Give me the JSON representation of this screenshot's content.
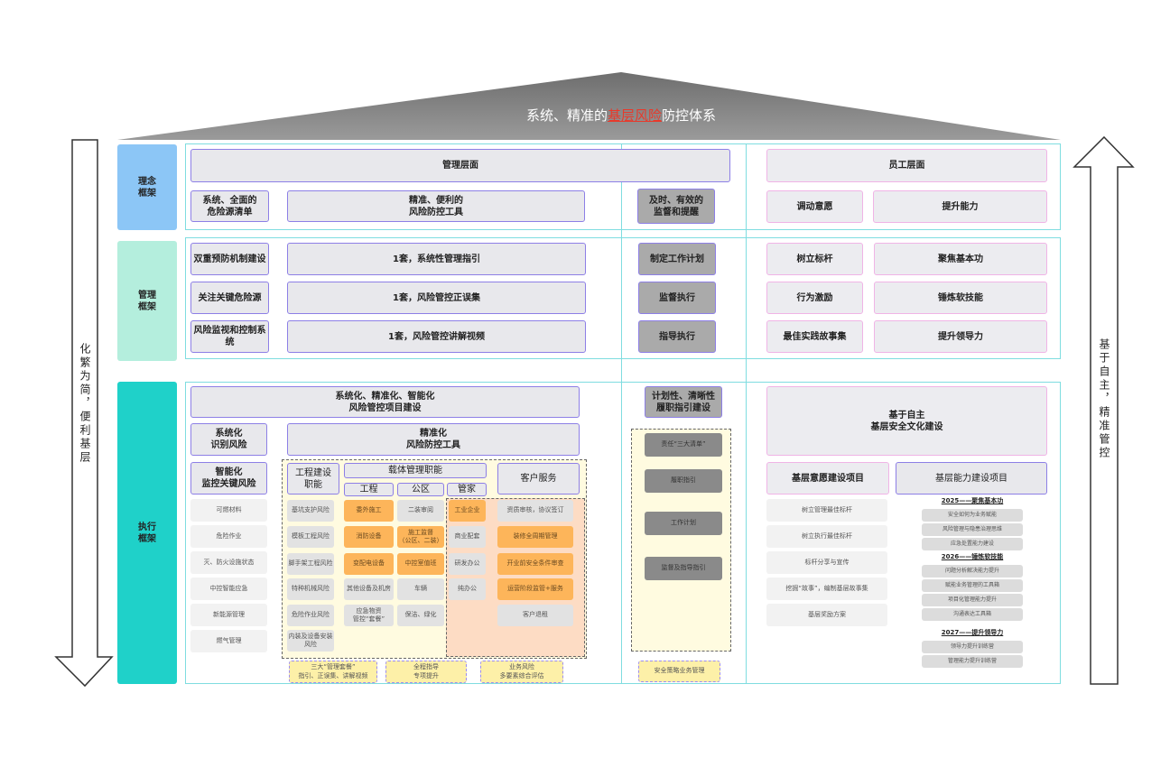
{
  "title": {
    "prefix": "系统、精准的",
    "highlight": "基层风险",
    "suffix": "防控体系",
    "highlight_color": "#e8392b"
  },
  "left_arrow_text": "化繁为简，便利基层",
  "right_arrow_text": "基于自主，精准管控",
  "row_labels": {
    "concept": "理念\n框架",
    "management": "管理\n框架",
    "execution": "执行\n框架"
  },
  "colors": {
    "concept": "#8cc6f6",
    "management": "#b4eedd",
    "execution": "#1fd1c9",
    "orange": "#fdb55a",
    "frame": "#7fdde0"
  },
  "concept": {
    "mgmt_level": "管理层面",
    "staff_level": "员工层面",
    "items": [
      "系统、全面的\n危险源清单",
      "精准、便利的\n风险防控工具",
      "及时、有效的\n监督和提醒",
      "调动意愿",
      "提升能力"
    ]
  },
  "management": {
    "left": [
      "双重预防机制建设",
      "关注关键危险源",
      "风险监视和控制系统"
    ],
    "middle": [
      "1套，系统性管理指引",
      "1套，风险管控正误集",
      "1套，风险管控讲解视频"
    ],
    "supervise": [
      "制定工作计划",
      "监督执行",
      "指导执行"
    ],
    "staff_a": [
      "树立标杆",
      "行为激励",
      "最佳实践故事集"
    ],
    "staff_b": [
      "聚焦基本功",
      "锤炼软技能",
      "提升领导力"
    ]
  },
  "execution": {
    "project": "系统化、精准化、智能化\n风险管控项目建设",
    "identify": "系统化\n识别风险",
    "tools": "精准化\n风险防控工具",
    "monitor": "智能化\n监控关键风险",
    "monitor_items": [
      "可燃材料",
      "危险作业",
      "灭、防火设施状态",
      "中控智能应急",
      "新能源管理",
      "燃气管理"
    ],
    "engineering_func": "工程建设\n职能",
    "carrier_func": "载体管理职能",
    "customer_service": "客户服务",
    "sub_headers": [
      "工程",
      "公区",
      "管家"
    ],
    "col_engineering": [
      "基坑支护风险",
      "模板工程风险",
      "脚手架工程风险",
      "特种机械风险",
      "危险作业风险",
      "内装及设备安装\n风险"
    ],
    "col_project": [
      "委外施工",
      "消防设备",
      "变配电设备",
      "其他设备及机房",
      "应急物资\n管控“套餐”"
    ],
    "col_public": [
      "二装审阅",
      "施工监督\n（公区、二装）",
      "中控室值班",
      "车辆",
      "保洁、绿化"
    ],
    "col_butler": [
      "工业企业",
      "商业配套",
      "研发办公",
      "纯办公"
    ],
    "col_customer": [
      "资质审核，协议签订",
      "装修全周期管理",
      "开业前安全条件审查",
      "运营阶段监管+服务",
      "客户退租"
    ],
    "bottom": [
      "三大“管理套餐”\n指引、正误集、讲解视频",
      "全程指导\n专项提升",
      "业务风险\n多要素综合评估"
    ],
    "duty": "计划性、清晰性\n履职指引建设",
    "duty_items": [
      "责任“三大清单”",
      "履职指引",
      "工作计划",
      "监督及指导指引"
    ],
    "duty_bottom": "安全策略业务管理",
    "culture": "基于自主\n基层安全文化建设",
    "willing": "基层意愿建设项目",
    "ability": "基层能力建设项目",
    "willing_items": [
      "树立管理最佳标杆",
      "树立执行最佳标杆",
      "标杆分享与宣传",
      "挖掘“故事”，编制基层故事集",
      "基层奖励方案"
    ],
    "ability_plan": [
      {
        "year": "2025——聚焦基本功",
        "items": [
          "安全如何为业务赋能",
          "风险管理与隐患治理思维",
          "应急处置能力建设"
        ]
      },
      {
        "year": "2026——锤炼软技能",
        "items": [
          "问题分析解决能力提升",
          "赋能业务管理的工具箱",
          "项目化管理能力提升",
          "沟通表达工具箱"
        ]
      },
      {
        "year": "2027——提升领导力",
        "items": [
          "领导力提升训练营",
          "管理能力提升训练营"
        ]
      }
    ]
  }
}
